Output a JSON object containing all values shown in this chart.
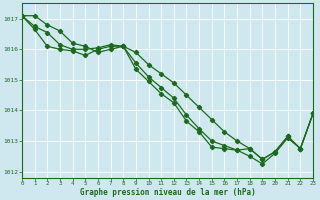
{
  "title": "Graphe pression niveau de la mer (hPa)",
  "bg_color": "#cfe8f0",
  "grid_color": "#ffffff",
  "line_color": "#1a6b1a",
  "xlim": [
    0,
    23
  ],
  "ylim": [
    1011.8,
    1017.5
  ],
  "yticks": [
    1012,
    1013,
    1014,
    1015,
    1016,
    1017
  ],
  "xticks": [
    0,
    1,
    2,
    3,
    4,
    5,
    6,
    7,
    8,
    9,
    10,
    11,
    12,
    13,
    14,
    15,
    16,
    17,
    18,
    19,
    20,
    21,
    22,
    23
  ],
  "line1_x": [
    0,
    1,
    2,
    3,
    4,
    5,
    6,
    7,
    8,
    9,
    10,
    11,
    12,
    13,
    14,
    15,
    16,
    17,
    18,
    19,
    20,
    21,
    22,
    23
  ],
  "line1_y": [
    1017.1,
    1017.1,
    1016.8,
    1016.6,
    1016.2,
    1016.1,
    1015.9,
    1016.0,
    1016.1,
    1015.9,
    1015.5,
    1015.2,
    1014.9,
    1014.5,
    1014.1,
    1013.7,
    1013.3,
    1013.0,
    1012.75,
    1012.4,
    1012.65,
    1013.15,
    1012.75,
    1013.9
  ],
  "line2_x": [
    0,
    1,
    2,
    3,
    4,
    5,
    6,
    7,
    8,
    9,
    10,
    11,
    12,
    13,
    14,
    15,
    16,
    17,
    18,
    19,
    20,
    21,
    22,
    23
  ],
  "line2_y": [
    1017.1,
    1016.75,
    1016.55,
    1016.15,
    1016.0,
    1016.0,
    1016.05,
    1016.15,
    1016.1,
    1015.55,
    1015.1,
    1014.75,
    1014.4,
    1013.85,
    1013.4,
    1013.0,
    1012.85,
    1012.7,
    1012.75,
    1012.4,
    1012.65,
    1013.15,
    1012.75,
    1013.9
  ],
  "line3_x": [
    0,
    1,
    2,
    3,
    4,
    5,
    6,
    7,
    8,
    9,
    10,
    11,
    12,
    13,
    14,
    15,
    16,
    17,
    18,
    19,
    20,
    21,
    22,
    23
  ],
  "line3_y": [
    1017.1,
    1016.65,
    1016.1,
    1016.0,
    1015.95,
    1015.8,
    1016.0,
    1016.1,
    1016.1,
    1015.35,
    1014.95,
    1014.55,
    1014.25,
    1013.65,
    1013.3,
    1012.8,
    1012.75,
    1012.7,
    1012.5,
    1012.25,
    1012.6,
    1013.1,
    1012.75,
    1013.9
  ]
}
